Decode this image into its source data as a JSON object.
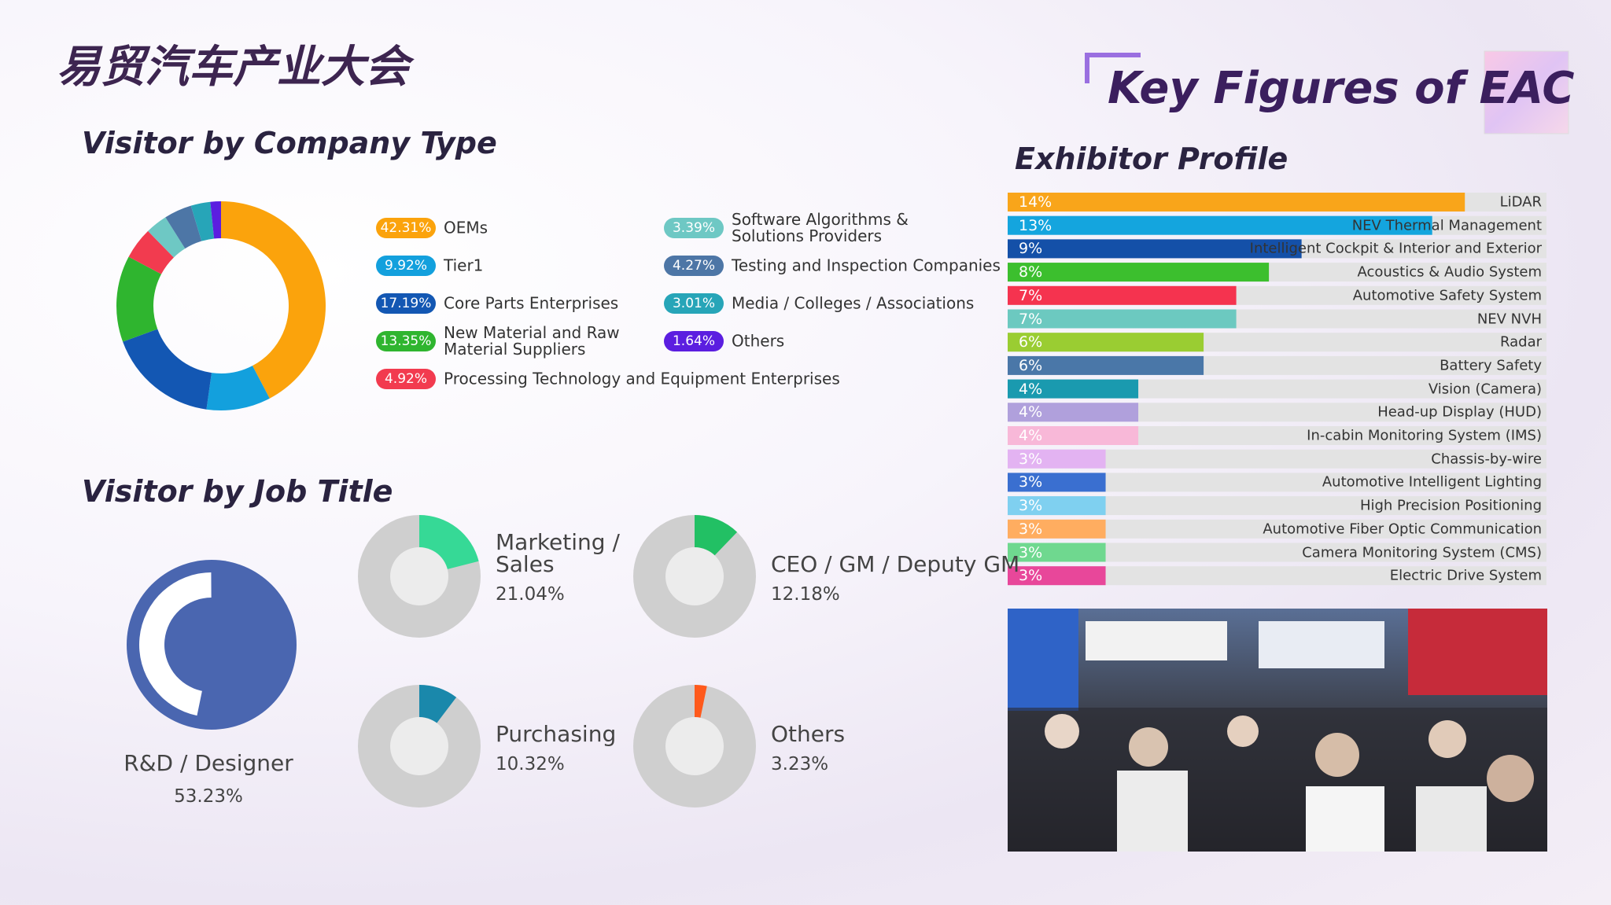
{
  "logo": "易贸汽车产业大会",
  "title": "Key Figures of EAC",
  "chart_data": [
    {
      "type": "donut",
      "title": "Visitor by Company Type",
      "categories": [
        "OEMs",
        "Tier1",
        "Core Parts Enterprises",
        "New Material and Raw Material Suppliers",
        "Processing Technology and Equipment Enterprises",
        "Software Algorithms & Solutions Providers",
        "Testing and Inspection Companies",
        "Media / Colleges / Associations",
        "Others"
      ],
      "values": [
        42.31,
        9.92,
        17.19,
        13.35,
        4.92,
        3.39,
        4.27,
        3.01,
        1.64
      ],
      "value_labels": [
        "42.31%",
        "9.92%",
        "17.19%",
        "13.35%",
        "4.92%",
        "3.39%",
        "4.27%",
        "3.01%",
        "1.64%"
      ],
      "colors": [
        "#fba30c",
        "#13a0dd",
        "#1357b3",
        "#2fb52f",
        "#f23b4f",
        "#6ec8c4",
        "#4d76a6",
        "#27a5b8",
        "#5b1ee0"
      ]
    },
    {
      "type": "donut-multiples",
      "title": "Visitor by Job Title",
      "categories": [
        "R&D / Designer",
        "Marketing / Sales",
        "CEO / GM / Deputy GM",
        "Purchasing",
        "Others"
      ],
      "values": [
        53.23,
        21.04,
        12.18,
        10.32,
        3.23
      ],
      "value_labels": [
        "53.23%",
        "21.04%",
        "12.18%",
        "10.32%",
        "3.23%"
      ],
      "colors": [
        "#4a66b0",
        "#36d996",
        "#22c064",
        "#1a88ab",
        "#ff5a1c"
      ]
    },
    {
      "type": "bar",
      "orientation": "horizontal",
      "title": "Exhibitor Profile",
      "categories": [
        "LiDAR",
        "NEV Thermal Management",
        "Intelligent Cockpit & Interior and Exterior",
        "Acoustics & Audio System",
        "Automotive Safety System",
        "NEV NVH",
        "Radar",
        "Battery Safety",
        "Vision (Camera)",
        "Head-up Display (HUD)",
        "In-cabin Monitoring System (IMS)",
        "Chassis-by-wire",
        "Automotive Intelligent Lighting",
        "High Precision Positioning",
        "Automotive Fiber Optic Communication",
        "Camera Monitoring System (CMS)",
        "Electric Drive System"
      ],
      "values": [
        14,
        13,
        9,
        8,
        7,
        7,
        6,
        6,
        4,
        4,
        4,
        3,
        3,
        3,
        3,
        3,
        3
      ],
      "value_labels": [
        "14%",
        "13%",
        "9%",
        "8%",
        "7%",
        "7%",
        "6%",
        "6%",
        "4%",
        "4%",
        "4%",
        "3%",
        "3%",
        "3%",
        "3%",
        "3%",
        "3%"
      ],
      "colors": [
        "#f9a51a",
        "#14a5de",
        "#1450a8",
        "#3cbf2e",
        "#f5334f",
        "#6cc9c0",
        "#9acd32",
        "#4a77a8",
        "#1a9aaf",
        "#b0a0dc",
        "#f8b8d8",
        "#e3b3f2",
        "#3a6fd0",
        "#7fd0f0",
        "#ffad60",
        "#6fd88f",
        "#e8479a"
      ],
      "xlim": [
        0,
        16.5
      ]
    }
  ]
}
